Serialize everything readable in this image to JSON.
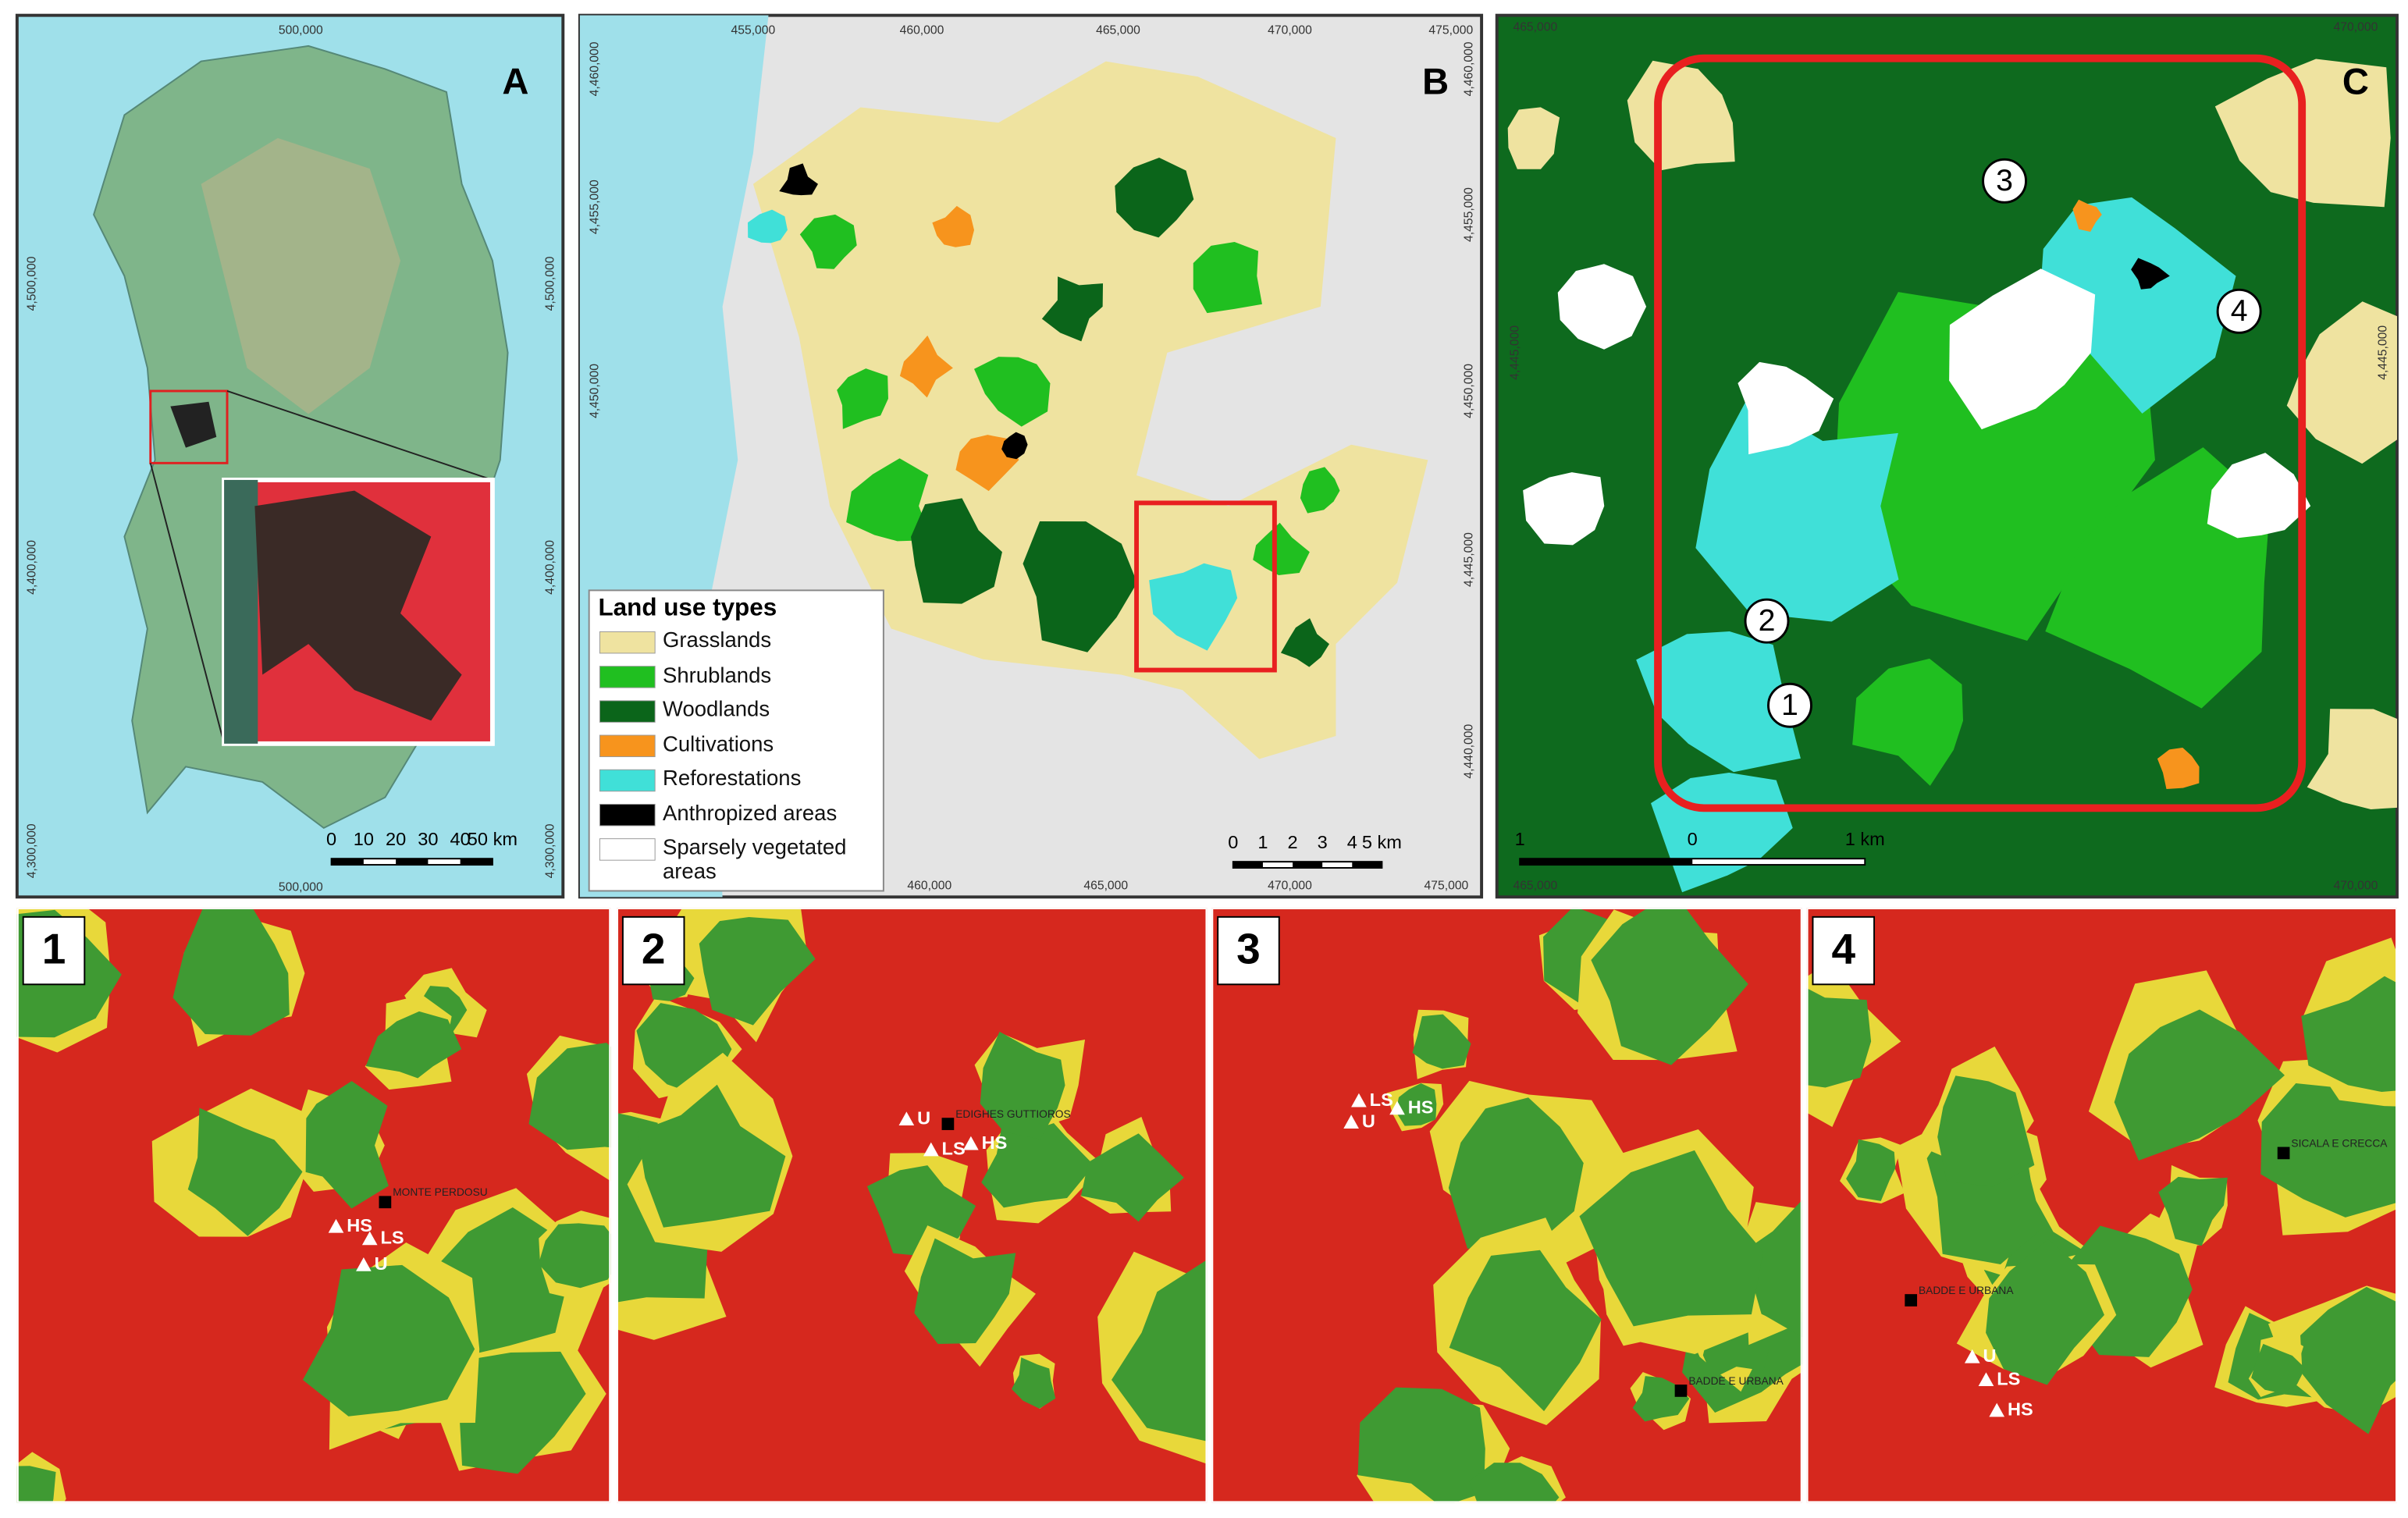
{
  "panel_a": {
    "label": "A",
    "top_ticks": [
      "500,000"
    ],
    "bottom_ticks": [
      "500,000"
    ],
    "left_ticks": [
      "4,500,000",
      "4,400,000",
      "4,300,000"
    ],
    "right_ticks": [
      "4,500,000",
      "4,400,000",
      "4,300,000"
    ],
    "scale": [
      "0",
      "10",
      "20",
      "30",
      "40",
      "50 km"
    ]
  },
  "panel_b": {
    "label": "B",
    "top_ticks": [
      "455,000",
      "460,000",
      "465,000",
      "470,000",
      "475,000"
    ],
    "bottom_ticks": [
      "460,000",
      "465,000",
      "470,000",
      "475,000"
    ],
    "left_ticks": [
      "4,460,000",
      "4,455,000",
      "4,450,000"
    ],
    "right_ticks": [
      "4,460,000",
      "4,455,000",
      "4,450,000",
      "4,445,000",
      "4,440,000"
    ],
    "scale": [
      "0",
      "1",
      "2",
      "3",
      "4",
      "5 km"
    ],
    "legend": {
      "title": "Land use types",
      "items": [
        {
          "name": "Grasslands",
          "color": "#efe3a0"
        },
        {
          "name": "Shrublands",
          "color": "#20bf20"
        },
        {
          "name": "Woodlands",
          "color": "#0b651a"
        },
        {
          "name": "Cultivations",
          "color": "#f7941d"
        },
        {
          "name": "Reforestations",
          "color": "#40e0d8"
        },
        {
          "name": "Anthropized areas",
          "color": "#000000"
        },
        {
          "name": "Sparsely vegetated areas",
          "color": "#ffffff"
        }
      ]
    }
  },
  "panel_c": {
    "label": "C",
    "top_ticks": [
      "465,000",
      "470,000"
    ],
    "bottom_ticks": [
      "465,000",
      "470,000"
    ],
    "left_ticks": [
      "4,445,000"
    ],
    "right_ticks": [
      "4,445,000"
    ],
    "scale": [
      "1",
      "0",
      "1 km"
    ],
    "sites": [
      "1",
      "2",
      "3",
      "4"
    ]
  },
  "sites": [
    {
      "label": "1",
      "points": [
        "HS",
        "LS",
        "U"
      ],
      "places": [
        "MONTE PERDOSU"
      ]
    },
    {
      "label": "2",
      "points": [
        "U",
        "LS",
        "HS"
      ],
      "places": [
        "EDIGHES GUTTIOROS"
      ]
    },
    {
      "label": "3",
      "points": [
        "LS",
        "U",
        "HS"
      ],
      "places": [
        "BADDE E URBANA"
      ]
    },
    {
      "label": "4",
      "points": [
        "U",
        "LS",
        "HS"
      ],
      "places": [
        "BADDE E URBANA",
        "SICALA E CRECCA"
      ]
    }
  ]
}
